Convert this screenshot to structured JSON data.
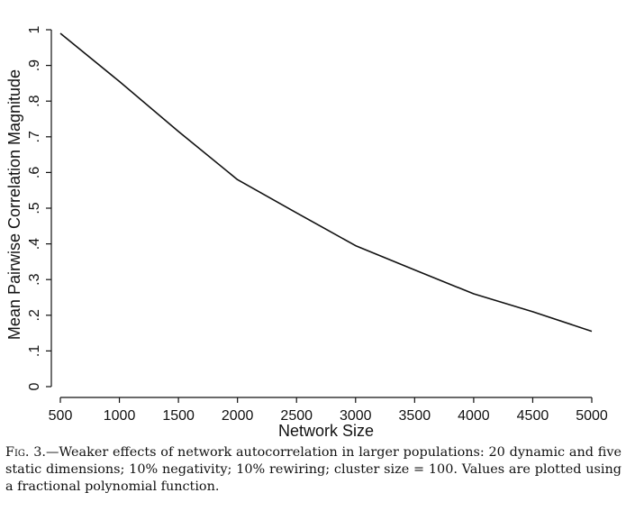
{
  "chart_data": {
    "type": "line",
    "title": "",
    "xlabel": "Network Size",
    "ylabel": "Mean Pairwise Correlation Magnitude",
    "xlim": [
      500,
      5000
    ],
    "ylim": [
      0,
      1
    ],
    "x_ticks": [
      500,
      1000,
      1500,
      2000,
      2500,
      3000,
      3500,
      4000,
      4500,
      5000
    ],
    "y_ticks": [
      0,
      0.1,
      0.2,
      0.3,
      0.4,
      0.5,
      0.6,
      0.7,
      0.8,
      0.9,
      1
    ],
    "y_tick_labels": [
      "0",
      ".1",
      ".2",
      ".3",
      ".4",
      ".5",
      ".6",
      ".7",
      ".8",
      ".9",
      "1"
    ],
    "series": [
      {
        "name": "Mean pairwise correlation magnitude",
        "x": [
          500,
          1000,
          1500,
          2000,
          2500,
          3000,
          3500,
          4000,
          4500,
          5000
        ],
        "y": [
          0.99,
          0.855,
          0.715,
          0.58,
          0.487,
          0.395,
          0.327,
          0.26,
          0.21,
          0.155
        ]
      }
    ],
    "grid": false,
    "legend": "none"
  },
  "caption": {
    "label": "Fig. 3.",
    "text": "—Weaker effects of network autocorrelation in larger populations: 20 dynamic and five static dimensions; 10% negativity; 10% rewiring; cluster size = 100. Values are plotted using a fractional polynomial function."
  }
}
